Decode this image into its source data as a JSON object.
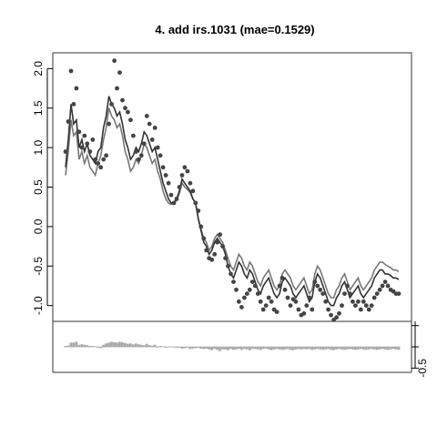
{
  "chart_data": [
    {
      "type": "line",
      "title": "4. add irs.1031 (mae=0.1529)",
      "xlabel": "",
      "ylabel": "",
      "ylim": [
        -1.2,
        2.2
      ],
      "yticks": [
        -1.0,
        -0.5,
        0.0,
        0.5,
        1.0,
        1.5,
        2.0
      ],
      "ytick_labels": [
        "-1.0",
        "-0.5",
        "0.0",
        "0.5",
        "1.0",
        "1.5",
        "2.0"
      ],
      "grid": false,
      "x": [
        1,
        2,
        3,
        4,
        5,
        6,
        7,
        8,
        9,
        10,
        11,
        12,
        13,
        14,
        15,
        16,
        17,
        18,
        19,
        20,
        21,
        22,
        23,
        24,
        25,
        26,
        27,
        28,
        29,
        30,
        31,
        32,
        33,
        34,
        35,
        36,
        37,
        38,
        39,
        40,
        41,
        42,
        43,
        44,
        45,
        46,
        47,
        48,
        49,
        50,
        51,
        52,
        53,
        54,
        55,
        56,
        57,
        58,
        59,
        60,
        61,
        62,
        63,
        64,
        65,
        66,
        67,
        68,
        69,
        70,
        71,
        72,
        73,
        74,
        75,
        76,
        77,
        78,
        79,
        80,
        81,
        82,
        83,
        84,
        85,
        86,
        87,
        88,
        89,
        90,
        91,
        92,
        93,
        94,
        95,
        96,
        97,
        98,
        99,
        100,
        101,
        102,
        103,
        104,
        105,
        106,
        107,
        108,
        109,
        110,
        111,
        112,
        113,
        114,
        115,
        116,
        117,
        118,
        119,
        120,
        121,
        122,
        123,
        124
      ],
      "series": [
        {
          "values": [
            0.95,
            1.33,
            1.97,
            1.55,
            1.75,
            1.2,
            1.0,
            1.15,
            1.05,
            0.95,
            1.1,
            0.85,
            0.8,
            0.75,
            0.85,
            0.9,
            1.3,
            1.55,
            2.1,
            1.75,
            1.95,
            1.6,
            1.5,
            1.45,
            1.35,
            1.15,
            0.95,
            0.85,
            0.9,
            1.05,
            1.4,
            1.3,
            1.1,
            1.25,
            1.0,
            0.9,
            0.75,
            0.65,
            0.55,
            0.4,
            0.3,
            0.35,
            0.5,
            0.65,
            0.75,
            0.7,
            0.55,
            0.45,
            0.3,
            0.2,
            0.0,
            -0.15,
            -0.3,
            -0.4,
            -0.42,
            -0.35,
            -0.2,
            -0.1,
            -0.25,
            -0.4,
            -0.5,
            -0.6,
            -0.7,
            -0.8,
            -0.95,
            -1.02,
            -0.9,
            -0.85,
            -0.8,
            -0.7,
            -0.75,
            -0.85,
            -0.95,
            -1.05,
            -1.0,
            -0.9,
            -0.95,
            -1.05,
            -1.08,
            -0.75,
            -0.65,
            -0.8,
            -0.9,
            -1.0,
            -0.92,
            -0.95,
            -1.05,
            -1.12,
            -1.1,
            -1.0,
            -0.9,
            -1.05,
            -0.7,
            -0.75,
            -0.8,
            -0.85,
            -0.95,
            -1.05,
            -1.12,
            -1.18,
            -1.15,
            -1.1,
            -1.0,
            -0.85,
            -0.75,
            -0.85,
            -0.95,
            -1.0,
            -0.95,
            -1.05,
            -0.95,
            -1.0,
            -1.05,
            -1.0,
            -0.9,
            -0.85,
            -0.8,
            -0.75,
            -0.7,
            -0.75,
            -0.8,
            -0.82,
            -0.85,
            -0.85
          ]
        },
        {
          "values": [
            0.75,
            1.1,
            1.55,
            1.3,
            1.35,
            1.0,
            1.1,
            0.95,
            1.05,
            0.9,
            0.85,
            0.8,
            0.95,
            1.0,
            1.25,
            1.4,
            1.65,
            1.55,
            1.5,
            1.4,
            1.45,
            1.3,
            1.1,
            1.0,
            0.85,
            0.9,
            1.0,
            0.95,
            1.05,
            1.2,
            1.15,
            1.05,
            0.95,
            1.0,
            0.85,
            0.7,
            0.55,
            0.45,
            0.35,
            0.3,
            0.3,
            0.35,
            0.45,
            0.6,
            0.55,
            0.5,
            0.45,
            0.35,
            0.3,
            0.1,
            -0.05,
            -0.2,
            -0.25,
            -0.35,
            -0.3,
            -0.2,
            -0.15,
            -0.2,
            -0.25,
            -0.35,
            -0.5,
            -0.6,
            -0.65,
            -0.55,
            -0.45,
            -0.5,
            -0.6,
            -0.65,
            -0.55,
            -0.6,
            -0.7,
            -0.8,
            -0.85,
            -0.75,
            -0.7,
            -0.65,
            -0.75,
            -0.85,
            -0.9,
            -0.85,
            -0.7,
            -0.65,
            -0.7,
            -0.75,
            -0.85,
            -0.9,
            -0.85,
            -0.8,
            -0.75,
            -0.85,
            -0.95,
            -0.9,
            -0.7,
            -0.6,
            -0.65,
            -0.75,
            -0.85,
            -0.95,
            -1.0,
            -1.0,
            -0.9,
            -0.85,
            -0.75,
            -0.7,
            -0.8,
            -0.9,
            -0.85,
            -0.8,
            -0.75,
            -0.85,
            -0.9,
            -0.85,
            -0.8,
            -0.75,
            -0.65,
            -0.6,
            -0.55,
            -0.55,
            -0.6,
            -0.6,
            -0.62,
            -0.65,
            -0.65,
            -0.67
          ]
        },
        {
          "values": [
            0.65,
            0.95,
            1.35,
            1.15,
            1.2,
            0.85,
            0.95,
            0.8,
            0.9,
            0.75,
            0.7,
            0.65,
            0.8,
            0.9,
            1.1,
            1.25,
            1.5,
            1.4,
            1.35,
            1.25,
            1.3,
            1.15,
            0.95,
            0.85,
            0.7,
            0.75,
            0.85,
            0.8,
            0.9,
            1.05,
            1.0,
            0.9,
            0.8,
            0.85,
            0.7,
            0.6,
            0.45,
            0.35,
            0.3,
            0.28,
            0.3,
            0.33,
            0.42,
            0.55,
            0.5,
            0.47,
            0.43,
            0.35,
            0.3,
            0.1,
            -0.03,
            -0.15,
            -0.2,
            -0.3,
            -0.25,
            -0.15,
            -0.1,
            -0.15,
            -0.2,
            -0.3,
            -0.4,
            -0.5,
            -0.55,
            -0.45,
            -0.35,
            -0.4,
            -0.5,
            -0.55,
            -0.45,
            -0.5,
            -0.6,
            -0.7,
            -0.75,
            -0.65,
            -0.6,
            -0.55,
            -0.65,
            -0.75,
            -0.8,
            -0.75,
            -0.6,
            -0.55,
            -0.6,
            -0.65,
            -0.75,
            -0.8,
            -0.75,
            -0.7,
            -0.65,
            -0.75,
            -0.85,
            -0.8,
            -0.6,
            -0.5,
            -0.55,
            -0.65,
            -0.75,
            -0.85,
            -0.9,
            -0.9,
            -0.8,
            -0.75,
            -0.65,
            -0.6,
            -0.7,
            -0.8,
            -0.75,
            -0.7,
            -0.65,
            -0.75,
            -0.8,
            -0.75,
            -0.7,
            -0.65,
            -0.55,
            -0.5,
            -0.45,
            -0.45,
            -0.48,
            -0.5,
            -0.52,
            -0.55,
            -0.55,
            -0.57
          ]
        }
      ],
      "colors": {
        "points": "#444444",
        "fit_line": "#333333",
        "alt_line": "#777777",
        "residual_bars": "#aaaaaa"
      }
    },
    {
      "type": "bar",
      "title": "",
      "xlabel": "",
      "ylabel": "",
      "ylim": [
        -0.6,
        0.6
      ],
      "yticks": [
        -0.5
      ],
      "ytick_labels": [
        "-0.5"
      ],
      "grid": false,
      "values": [
        0.02,
        0.03,
        0.1,
        0.1,
        0.12,
        0.05,
        0.06,
        0.05,
        0.04,
        0.02,
        0.02,
        0.01,
        -0.02,
        -0.03,
        0.05,
        0.08,
        0.1,
        0.12,
        0.11,
        0.1,
        0.12,
        0.11,
        0.09,
        0.07,
        0.08,
        0.06,
        0.08,
        0.06,
        0.05,
        0.04,
        0.07,
        0.04,
        0.03,
        0.05,
        -0.02,
        0.02,
        0.01,
        -0.02,
        0.0,
        0.01,
        -0.01,
        -0.02,
        -0.02,
        -0.04,
        -0.03,
        -0.02,
        -0.05,
        -0.04,
        -0.03,
        -0.02,
        -0.04,
        -0.05,
        -0.04,
        -0.06,
        -0.08,
        -0.05,
        -0.07,
        -0.1,
        -0.06,
        -0.06,
        -0.08,
        -0.05,
        -0.07,
        -0.06,
        -0.05,
        -0.07,
        -0.05,
        -0.06,
        -0.08,
        -0.05,
        -0.05,
        -0.06,
        -0.07,
        -0.05,
        -0.04,
        -0.06,
        -0.08,
        -0.06,
        -0.05,
        -0.06,
        -0.07,
        -0.06,
        -0.05,
        -0.07,
        -0.08,
        -0.06,
        -0.05,
        -0.06,
        -0.05,
        -0.06,
        -0.05,
        -0.07,
        -0.06,
        -0.05,
        -0.06,
        -0.07,
        -0.06,
        -0.05,
        -0.07,
        -0.08,
        -0.06,
        -0.05,
        -0.06,
        -0.07,
        -0.06,
        -0.05,
        -0.06,
        -0.07,
        -0.06,
        -0.05,
        -0.06,
        -0.07,
        -0.06,
        -0.05,
        -0.06,
        -0.07,
        -0.06,
        -0.05,
        -0.06,
        -0.07,
        -0.06,
        -0.05,
        -0.06,
        -0.07
      ]
    }
  ]
}
